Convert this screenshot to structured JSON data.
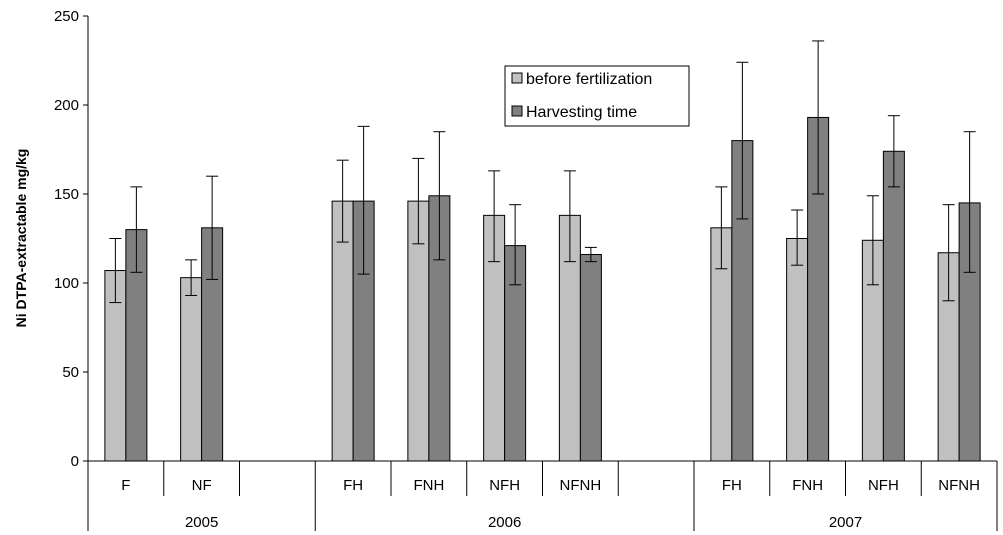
{
  "chart_data": {
    "type": "bar",
    "ylabel": "Ni DTPA-extractable mg/kg",
    "ylim": [
      0,
      250
    ],
    "yticks": [
      0,
      50,
      100,
      150,
      200,
      250
    ],
    "grid": false,
    "legend_position": "top-center",
    "categories": [
      "F",
      "NF",
      "",
      "FH",
      "FNH",
      "NFH",
      "NFNH",
      "",
      "FH",
      "FNH",
      "NFH",
      "NFNH"
    ],
    "groups": [
      {
        "label": "2005",
        "start": 0,
        "end": 3
      },
      {
        "label": "2006",
        "start": 3,
        "end": 8
      },
      {
        "label": "2007",
        "start": 8,
        "end": 12
      }
    ],
    "series": [
      {
        "name": "before fertilization",
        "color": "#c0c0c0",
        "values": [
          107,
          103,
          null,
          146,
          146,
          138,
          138,
          null,
          131,
          125,
          124,
          117
        ],
        "err_low": [
          89,
          93,
          null,
          123,
          122,
          112,
          112,
          null,
          108,
          110,
          99,
          90
        ],
        "err_high": [
          125,
          113,
          null,
          169,
          170,
          163,
          163,
          null,
          154,
          141,
          149,
          144
        ]
      },
      {
        "name": "Harvesting time",
        "color": "#808080",
        "values": [
          130,
          131,
          null,
          146,
          149,
          121,
          116,
          null,
          180,
          193,
          174,
          145
        ],
        "err_low": [
          106,
          102,
          null,
          105,
          113,
          99,
          112,
          null,
          136,
          150,
          154,
          106
        ],
        "err_high": [
          154,
          160,
          null,
          188,
          185,
          144,
          120,
          null,
          224,
          236,
          194,
          185
        ]
      }
    ]
  }
}
